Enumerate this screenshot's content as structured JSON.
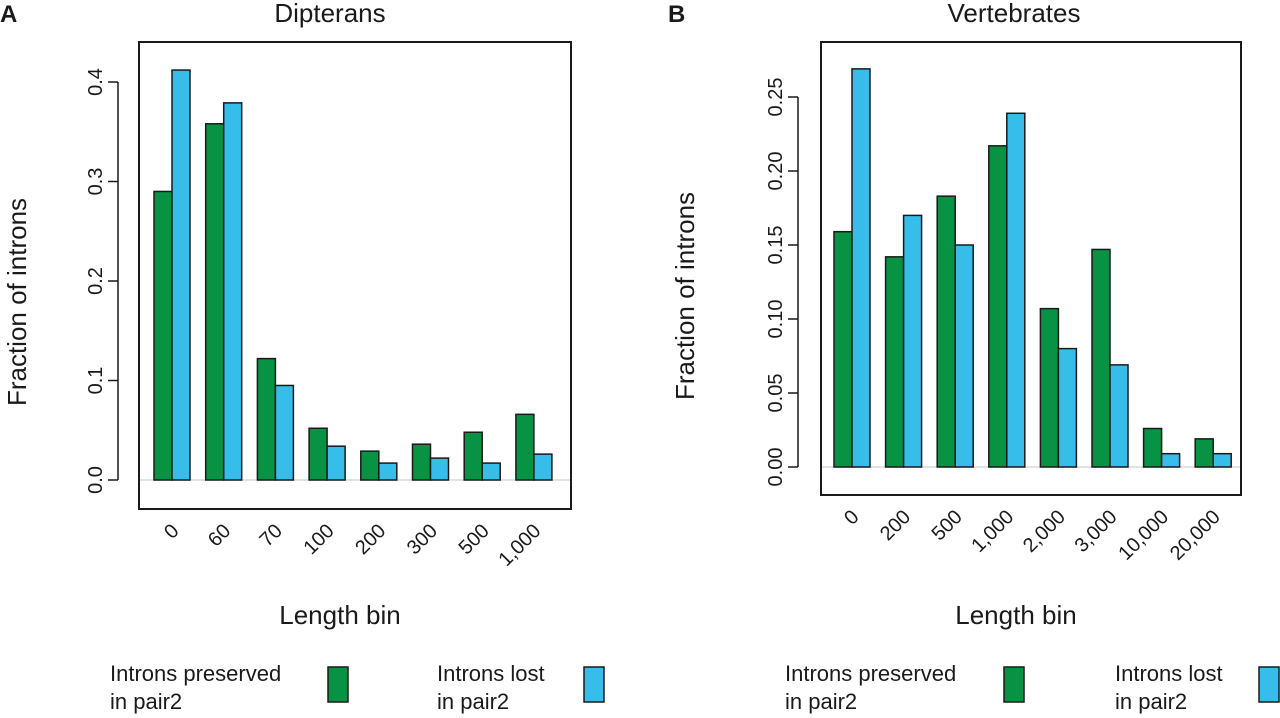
{
  "colors": {
    "preserved": "#079343",
    "lost": "#36bdea",
    "frame": "#1a1a1a",
    "zero_line": "#d9d9d9"
  },
  "chart_data": [
    {
      "type": "bar",
      "panel": "A",
      "title": "Dipterans",
      "xlabel": "Length bin",
      "ylabel": "Fraction of introns",
      "categories": [
        "0",
        "60",
        "70",
        "100",
        "200",
        "300",
        "500",
        "1,000"
      ],
      "ylim": [
        0,
        0.4
      ],
      "yticks": [
        "0.0",
        "0.1",
        "0.2",
        "0.3",
        "0.4"
      ],
      "yticks_values": [
        0,
        0.1,
        0.2,
        0.3,
        0.4
      ],
      "grid": false,
      "series": [
        {
          "name": "Introns preserved in pair2",
          "values": [
            0.29,
            0.358,
            0.122,
            0.052,
            0.029,
            0.036,
            0.048,
            0.066
          ]
        },
        {
          "name": "Introns lost in pair2",
          "values": [
            0.412,
            0.379,
            0.095,
            0.034,
            0.017,
            0.022,
            0.017,
            0.026
          ]
        }
      ],
      "legend": {
        "placement": "bottom",
        "preserved_line1": "Introns preserved",
        "preserved_line2": "in pair2",
        "lost_line1": "Introns lost",
        "lost_line2": "in pair2"
      }
    },
    {
      "type": "bar",
      "panel": "B",
      "title": "Vertebrates",
      "xlabel": "Length bin",
      "ylabel": "Fraction of introns",
      "categories": [
        "0",
        "200",
        "500",
        "1,000",
        "2,000",
        "3,000",
        "10,000",
        "20,000"
      ],
      "ylim": [
        0,
        0.25
      ],
      "yticks": [
        "0.00",
        "0.05",
        "0.10",
        "0.15",
        "0.20",
        "0.25"
      ],
      "yticks_values": [
        0,
        0.05,
        0.1,
        0.15,
        0.2,
        0.25
      ],
      "grid": false,
      "series": [
        {
          "name": "Introns preserved in pair2",
          "values": [
            0.159,
            0.142,
            0.183,
            0.217,
            0.107,
            0.147,
            0.026,
            0.019
          ]
        },
        {
          "name": "Introns lost in pair2",
          "values": [
            0.269,
            0.17,
            0.15,
            0.239,
            0.08,
            0.069,
            0.009,
            0.009
          ]
        }
      ],
      "legend": {
        "placement": "bottom",
        "preserved_line1": "Introns preserved",
        "preserved_line2": "in pair2",
        "lost_line1": "Introns lost",
        "lost_line2": "in pair2"
      }
    }
  ]
}
